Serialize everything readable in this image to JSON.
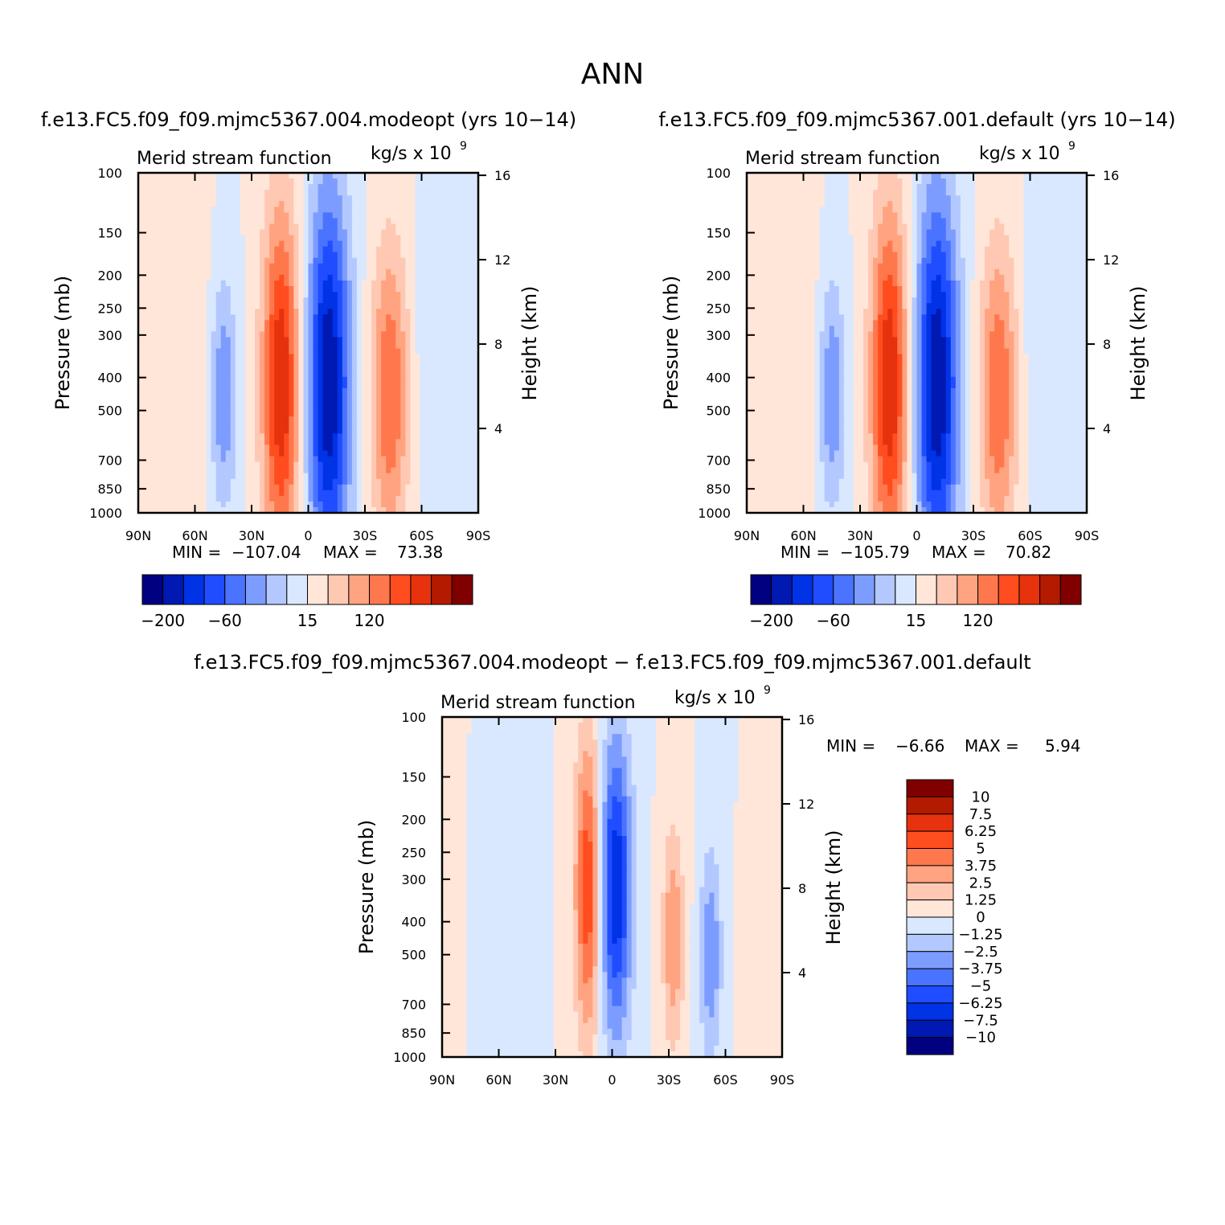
{
  "page_title": "ANN",
  "colors": {
    "main_scale": [
      "#000080",
      "#0019b3",
      "#0032e6",
      "#1f4dff",
      "#4a73ff",
      "#7c9dff",
      "#b3c8ff",
      "#d9e8ff",
      "#ffe6d9",
      "#ffc8b3",
      "#ffa380",
      "#ff784d",
      "#ff4d1f",
      "#e6320d",
      "#b31a00",
      "#800000"
    ],
    "diff_scale": [
      "#000080",
      "#0019b3",
      "#0032e6",
      "#1f4dff",
      "#4a73ff",
      "#7c9dff",
      "#b3c8ff",
      "#d9e8ff",
      "#ffe6d9",
      "#ffc8b3",
      "#ffa380",
      "#ff784d",
      "#ff4d1f",
      "#e6320d",
      "#b31a00",
      "#800000"
    ]
  },
  "chart_data": [
    {
      "id": "modeopt",
      "type": "heatmap",
      "title": "f.e13.FC5.f09_f09.mjmc5367.004.modeopt (yrs 10-14)",
      "subtitle_left": "Merid stream function",
      "subtitle_right": "kg/s x 10",
      "subtitle_exponent": "9",
      "ylabel": "Pressure (mb)",
      "ylabel_right": "Height (km)",
      "x_ticks": [
        "90N",
        "60N",
        "30N",
        "0",
        "30S",
        "60S",
        "90S"
      ],
      "y_ticks": [
        "100",
        "150",
        "200",
        "250",
        "300",
        "400",
        "500",
        "700",
        "850",
        "1000"
      ],
      "height_ticks": [
        "16",
        "12",
        "8",
        "4"
      ],
      "min_label": "MIN =",
      "min_value": "-107.04",
      "max_label": "MAX =",
      "max_value": "73.38",
      "colorbar_labels": [
        "-200",
        "-60",
        "15",
        "120"
      ]
    },
    {
      "id": "default",
      "type": "heatmap",
      "title": "f.e13.FC5.f09_f09.mjmc5367.001.default (yrs 10-14)",
      "subtitle_left": "Merid stream function",
      "subtitle_right": "kg/s x 10",
      "subtitle_exponent": "9",
      "ylabel": "Pressure (mb)",
      "ylabel_right": "Height (km)",
      "x_ticks": [
        "90N",
        "60N",
        "30N",
        "0",
        "30S",
        "60S",
        "90S"
      ],
      "y_ticks": [
        "100",
        "150",
        "200",
        "250",
        "300",
        "400",
        "500",
        "700",
        "850",
        "1000"
      ],
      "height_ticks": [
        "16",
        "12",
        "8",
        "4"
      ],
      "min_label": "MIN =",
      "min_value": "-105.79",
      "max_label": "MAX =",
      "max_value": "70.82",
      "colorbar_labels": [
        "-200",
        "-60",
        "15",
        "120"
      ]
    },
    {
      "id": "diff",
      "type": "heatmap",
      "title": "f.e13.FC5.f09_f09.mjmc5367.004.modeopt - f.e13.FC5.f09_f09.mjmc5367.001.default",
      "subtitle_left": "Merid stream function",
      "subtitle_right": "kg/s x 10",
      "subtitle_exponent": "9",
      "ylabel": "Pressure (mb)",
      "ylabel_right": "Height (km)",
      "x_ticks": [
        "90N",
        "60N",
        "30N",
        "0",
        "30S",
        "60S",
        "90S"
      ],
      "y_ticks": [
        "100",
        "150",
        "200",
        "250",
        "300",
        "400",
        "500",
        "700",
        "850",
        "1000"
      ],
      "height_ticks": [
        "16",
        "12",
        "8",
        "4"
      ],
      "min_label": "MIN =",
      "min_value": "-6.66",
      "max_label": "MAX =",
      "max_value": "5.94",
      "colorbar_labels": [
        "10",
        "7.5",
        "6.25",
        "5",
        "3.75",
        "2.5",
        "1.25",
        "0",
        "-1.25",
        "-2.5",
        "-3.75",
        "-5",
        "-6.25",
        "-7.5",
        "-10"
      ]
    }
  ]
}
